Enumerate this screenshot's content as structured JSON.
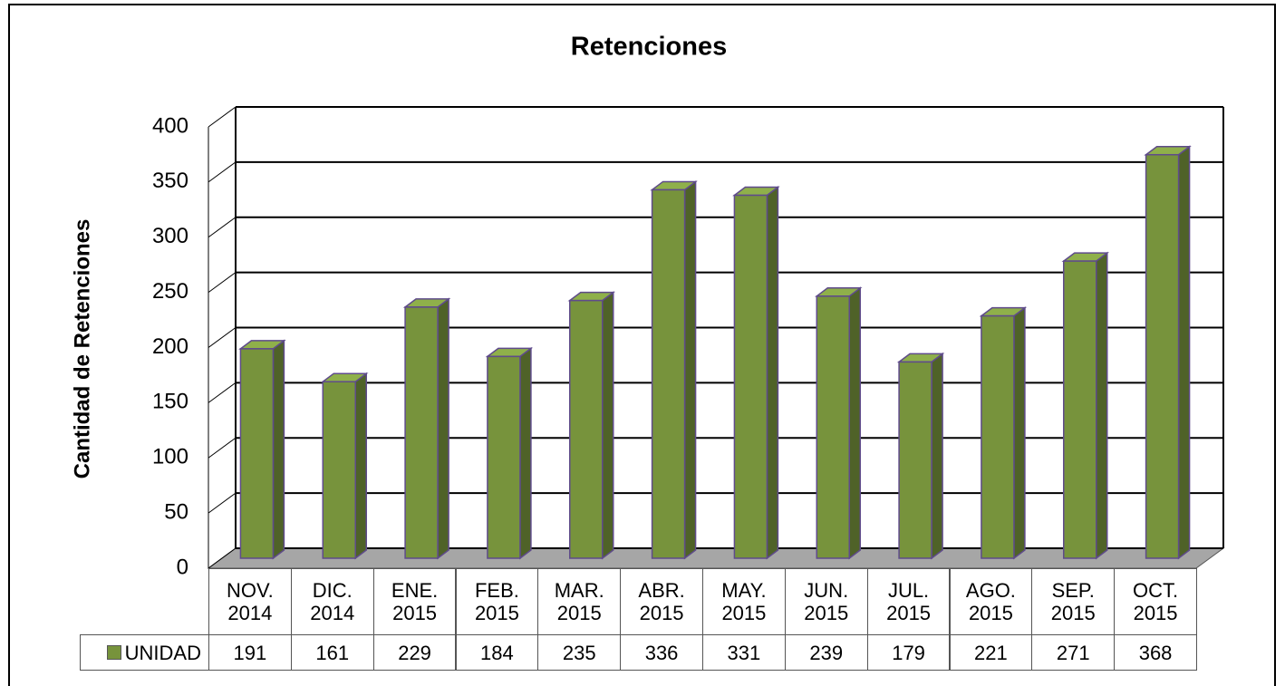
{
  "chart_data": {
    "type": "bar",
    "title": "Retenciones",
    "y_label": "Cantidad de Retenciones",
    "categories": [
      "NOV.\n2014",
      "DIC.\n2014",
      "ENE.\n2015",
      "FEB.\n2015",
      "MAR.\n2015",
      "ABR.\n2015",
      "MAY.\n2015",
      "JUN.\n2015",
      "JUL.\n2015",
      "AGO.\n2015",
      "SEP.\n2015",
      "OCT.\n2015"
    ],
    "series": [
      {
        "name": "UNIDAD",
        "color": "#77933c",
        "values": [
          191,
          161,
          229,
          184,
          235,
          336,
          331,
          239,
          179,
          221,
          271,
          368
        ]
      }
    ],
    "ylim": [
      0,
      400
    ],
    "yticks": [
      0,
      50,
      100,
      150,
      200,
      250,
      300,
      350,
      400
    ],
    "grid": true
  }
}
